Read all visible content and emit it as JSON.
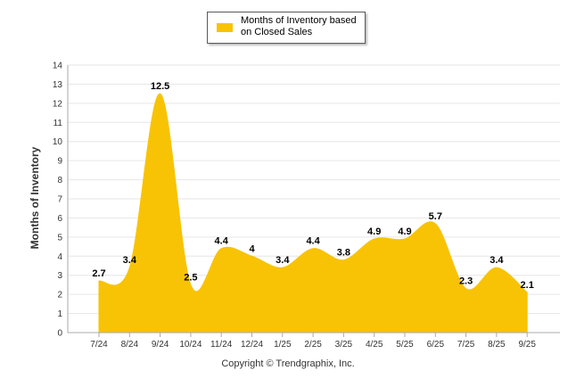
{
  "chart_data": {
    "type": "area",
    "categories": [
      "7/24",
      "8/24",
      "9/24",
      "10/24",
      "11/24",
      "12/24",
      "1/25",
      "2/25",
      "3/25",
      "4/25",
      "5/25",
      "6/25",
      "7/25",
      "8/25",
      "9/25"
    ],
    "series": [
      {
        "name": "Months of Inventory based on Closed Sales",
        "values": [
          2.7,
          3.4,
          12.5,
          2.5,
          4.4,
          4,
          3.4,
          4.4,
          3.8,
          4.9,
          4.9,
          5.7,
          2.3,
          3.4,
          2.1
        ],
        "data_labels": [
          "2.7",
          "3.4",
          "12.5",
          "2.5",
          "4.4",
          "4",
          "3.4",
          "4.4",
          "3.8",
          "4.9",
          "4.9",
          "5.7",
          "2.3",
          "3.4",
          "2.1"
        ],
        "color": "#f8c304"
      }
    ],
    "ylabel": "Months of Inventory",
    "ylim": [
      0,
      14
    ],
    "yticks": [
      "0",
      "1",
      "2",
      "3",
      "4",
      "5",
      "6",
      "7",
      "8",
      "9",
      "10",
      "11",
      "12",
      "13",
      "14"
    ],
    "grid": true,
    "legend": "top-center"
  },
  "footer": {
    "copyright": "Copyright © Trendgraphix, Inc."
  },
  "colors": {
    "area": "#f8c304",
    "grid": "#e6e6e6",
    "axis": "#aaaaaa",
    "tick_text": "#333333"
  }
}
